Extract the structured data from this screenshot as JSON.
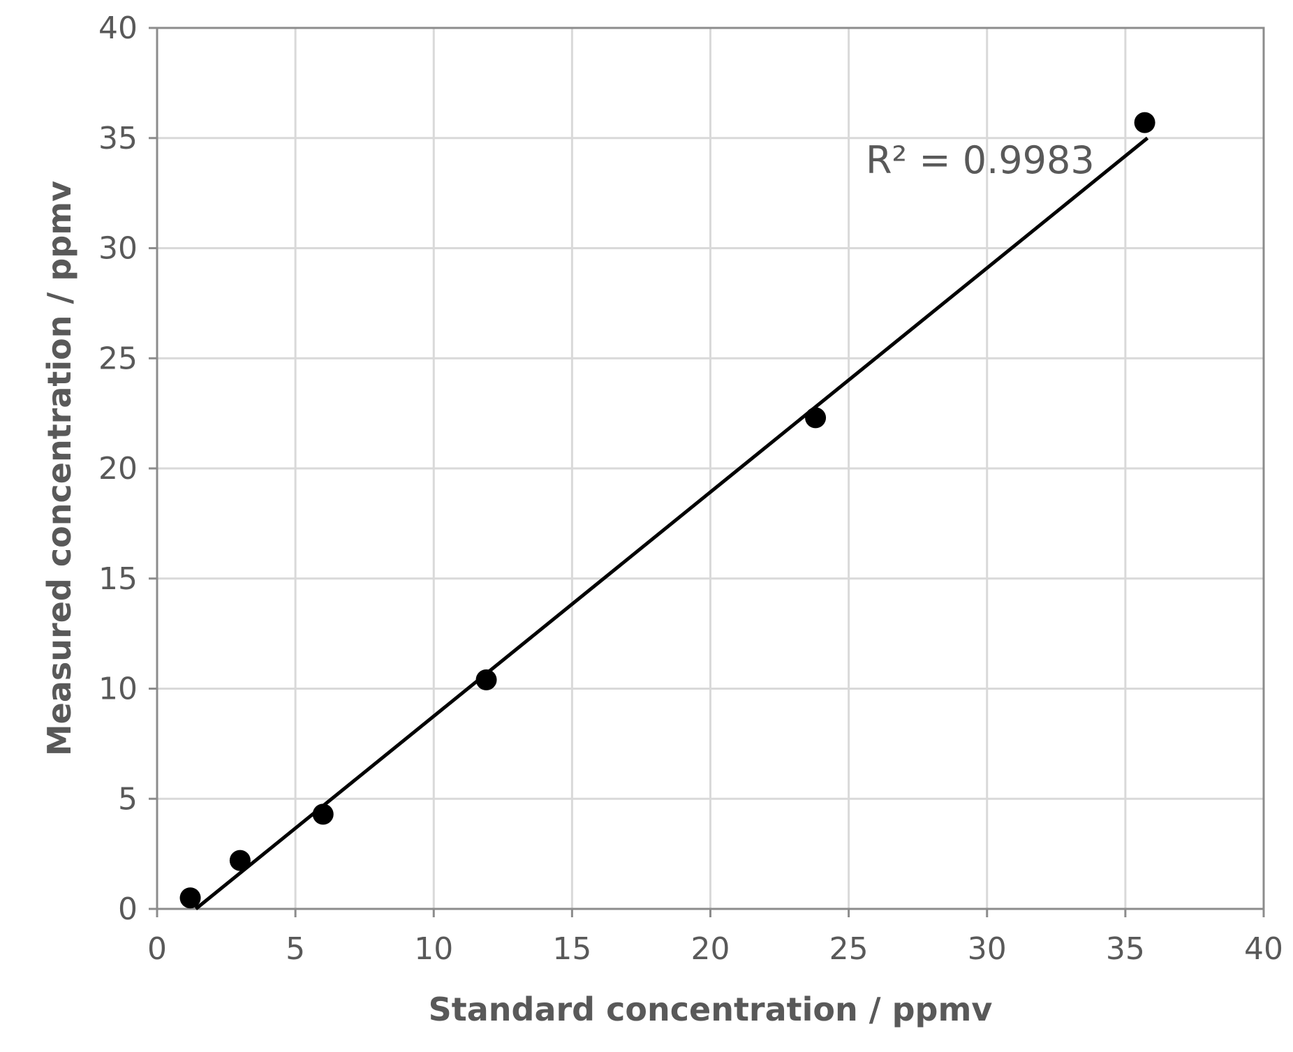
{
  "chart_data": {
    "type": "scatter",
    "title": "",
    "xlabel": "Standard concentration / ppmv",
    "ylabel": "Measured concentration / ppmv",
    "xlim": [
      0,
      40
    ],
    "ylim": [
      0,
      40
    ],
    "x_ticks": [
      "0",
      "5",
      "10",
      "15",
      "20",
      "25",
      "30",
      "35",
      "40"
    ],
    "y_ticks": [
      "0",
      "5",
      "10",
      "15",
      "20",
      "25",
      "30",
      "35",
      "40"
    ],
    "grid": true,
    "legend": "none",
    "colors": {
      "points": "#000000",
      "trendline": "#000000",
      "text": "#595959",
      "grid": "#d9d9d9"
    },
    "series": [
      {
        "x": [
          1.2,
          3.0,
          6.0,
          11.9,
          23.8,
          35.7
        ],
        "y": [
          0.5,
          2.2,
          4.3,
          10.4,
          22.3,
          35.7
        ]
      }
    ],
    "trendline": {
      "type": "linear",
      "x": [
        1.4,
        35.8
      ],
      "y": [
        0.0,
        35.0
      ]
    },
    "annotation": "R² = 0.9983"
  }
}
